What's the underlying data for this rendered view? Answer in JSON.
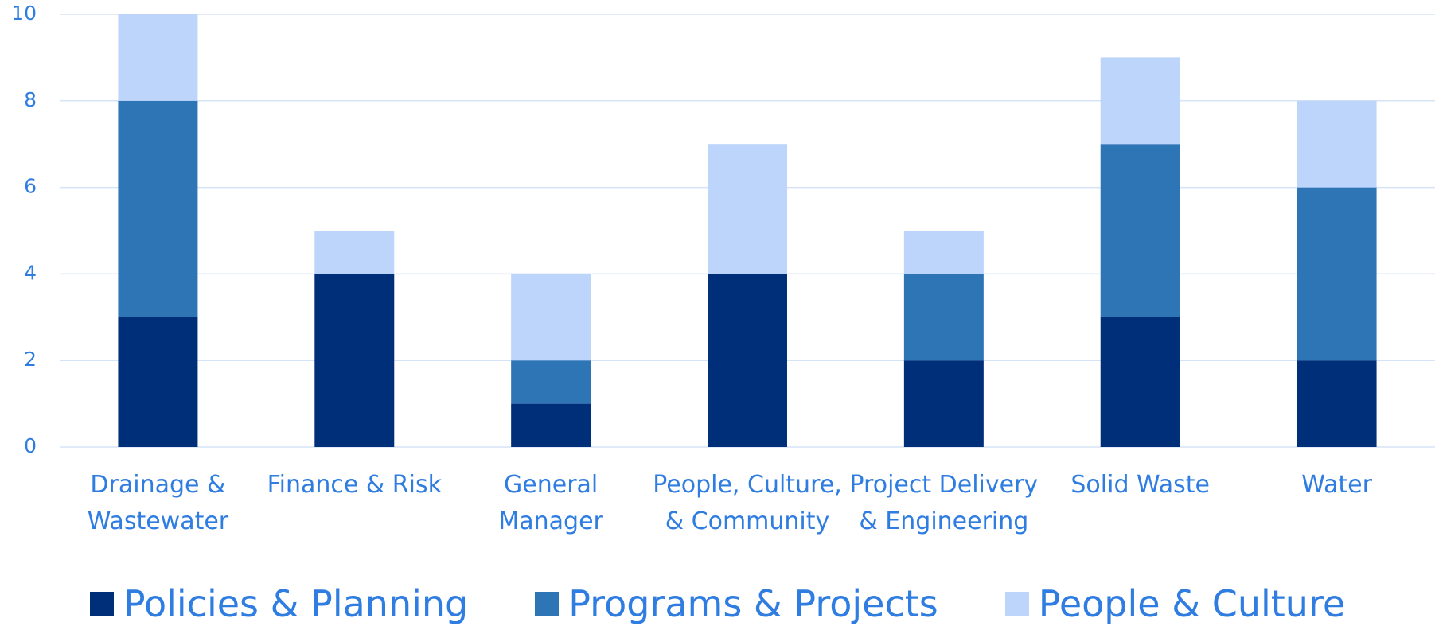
{
  "chart_data": {
    "type": "stacked_bar",
    "categories": [
      "Drainage & Wastewater",
      "Finance & Risk",
      "General Manager",
      "People, Culture, & Community",
      "Project Delivery & Engineering",
      "Solid Waste",
      "Water"
    ],
    "series": [
      {
        "name": "Policies & Planning",
        "color": "#002f7a",
        "values": [
          3,
          4,
          1,
          4,
          2,
          3,
          2
        ]
      },
      {
        "name": "Programs & Projects",
        "color": "#2e75b6",
        "values": [
          5,
          0,
          1,
          0,
          2,
          4,
          4
        ]
      },
      {
        "name": "People & Culture",
        "color": "#bdd4fb",
        "values": [
          2,
          1,
          2,
          3,
          1,
          2,
          2
        ]
      }
    ],
    "ylim": [
      0,
      10
    ],
    "yticks": [
      0,
      2,
      4,
      6,
      8,
      10
    ],
    "grid": true,
    "legend": "bottom"
  }
}
